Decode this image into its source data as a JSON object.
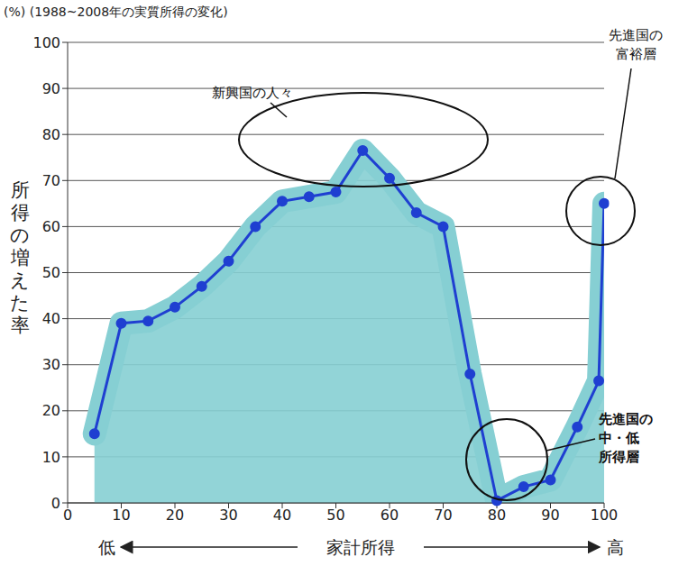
{
  "chart_data": {
    "type": "line",
    "y_unit": "(%)",
    "title": "(1988~2008年の実質所得の変化)",
    "ylabel": "所得の増えた率",
    "xlabel": "家計所得",
    "x_low": "低",
    "x_high": "高",
    "x": [
      5,
      10,
      15,
      20,
      25,
      30,
      35,
      40,
      45,
      50,
      55,
      60,
      65,
      70,
      75,
      80,
      85,
      90,
      95,
      99,
      100
    ],
    "values": [
      15,
      39,
      39.5,
      42.5,
      47,
      52.5,
      60,
      65.5,
      66.5,
      67.5,
      76.5,
      70.5,
      63,
      60,
      28,
      0.5,
      3.5,
      5,
      16.5,
      26.5,
      65
    ],
    "color": "#1f3fd1",
    "marker": "circle",
    "xlim": [
      0,
      100
    ],
    "xticks": [
      0,
      10,
      20,
      30,
      40,
      50,
      60,
      70,
      80,
      90,
      100
    ],
    "ylim": [
      0,
      100
    ],
    "yticks": [
      0,
      10,
      20,
      30,
      40,
      50,
      60,
      70,
      80,
      90,
      100
    ],
    "grid": true,
    "annotations": [
      "新興国の人々",
      "先進国の\n富裕層",
      "先進国の\n中・低\n所得層"
    ]
  }
}
